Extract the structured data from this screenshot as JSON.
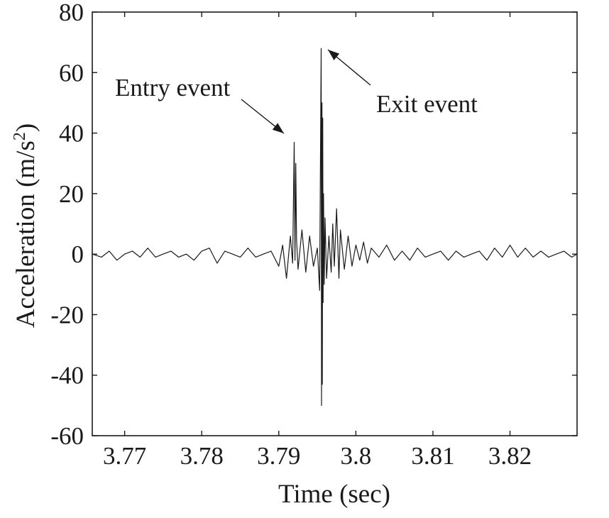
{
  "chart_data": {
    "type": "line",
    "title": "",
    "xlabel": "Time (sec)",
    "ylabel": "Acceleration (m/s",
    "ylabel_sup": "2",
    "ylabel_suffix": ")",
    "xlim": [
      3.7658,
      3.8287
    ],
    "ylim": [
      -60,
      80
    ],
    "xticks": [
      3.77,
      3.78,
      3.79,
      3.8,
      3.81,
      3.82
    ],
    "xtick_labels": [
      "3.77",
      "3.78",
      "3.79",
      "3.8",
      "3.81",
      "3.82"
    ],
    "yticks": [
      -60,
      -40,
      -20,
      0,
      20,
      40,
      60,
      80
    ],
    "ytick_labels": [
      "-60",
      "-40",
      "-20",
      "0",
      "20",
      "40",
      "60",
      "80"
    ],
    "grid": false,
    "line_color": "#1a1a1a",
    "series": [
      {
        "x": [
          3.7658,
          3.767,
          3.768,
          3.769,
          3.77,
          3.771,
          3.772,
          3.773,
          3.774,
          3.775,
          3.776,
          3.777,
          3.778,
          3.779,
          3.78,
          3.781,
          3.782,
          3.783,
          3.784,
          3.785,
          3.786,
          3.787,
          3.788,
          3.789,
          3.79,
          3.7905,
          3.791,
          3.7915,
          3.7918,
          3.792,
          3.7921,
          3.7922,
          3.7923,
          3.7925,
          3.793,
          3.7935,
          3.794,
          3.7945,
          3.795,
          3.7953,
          3.7955,
          3.79555,
          3.7956,
          3.79565,
          3.7957,
          3.79575,
          3.7958,
          3.7959,
          3.796,
          3.7962,
          3.7965,
          3.7968,
          3.797,
          3.7972,
          3.7975,
          3.7978,
          3.798,
          3.7985,
          3.799,
          3.7995,
          3.8,
          3.8005,
          3.801,
          3.8015,
          3.802,
          3.803,
          3.804,
          3.805,
          3.806,
          3.807,
          3.808,
          3.809,
          3.81,
          3.811,
          3.812,
          3.813,
          3.814,
          3.815,
          3.816,
          3.817,
          3.818,
          3.819,
          3.82,
          3.821,
          3.822,
          3.823,
          3.824,
          3.825,
          3.826,
          3.827,
          3.828,
          3.8287
        ],
        "y": [
          0,
          -1,
          1,
          -2,
          0,
          1,
          -1,
          2,
          -1,
          0,
          1,
          -1,
          0,
          -2,
          1,
          2,
          -3,
          1,
          0,
          -1,
          2,
          -1,
          0,
          1,
          -4,
          3,
          -8,
          6,
          -3,
          37,
          -2,
          30,
          5,
          -5,
          8,
          -6,
          6,
          -4,
          2,
          -12,
          68,
          -50,
          50,
          -43,
          45,
          -16,
          20,
          -10,
          12,
          -8,
          6,
          -6,
          10,
          -4,
          15,
          -8,
          8,
          -5,
          6,
          -4,
          3,
          -2,
          4,
          -3,
          2,
          -1,
          3,
          -2,
          1,
          -2,
          2,
          -1,
          0,
          1,
          -2,
          1,
          -1,
          0,
          1,
          -2,
          2,
          -1,
          3,
          -1,
          2,
          -1,
          1,
          -1,
          0,
          1,
          -1,
          0
        ]
      }
    ],
    "annotations": [
      {
        "text": "Entry event",
        "target": [
          3.792,
          38
        ]
      },
      {
        "text": "Exit event",
        "target": [
          3.7962,
          68
        ]
      }
    ]
  }
}
